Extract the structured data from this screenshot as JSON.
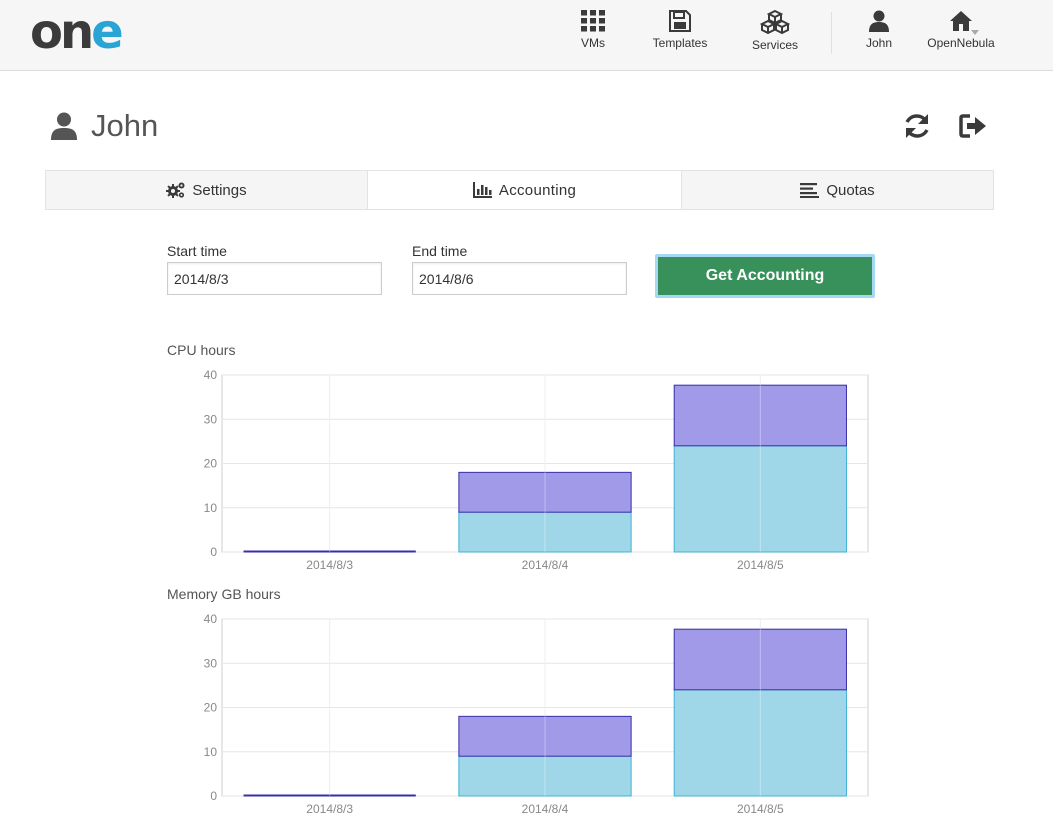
{
  "brand": {
    "logo_text": "one"
  },
  "nav": {
    "items": [
      {
        "label": "VMs",
        "icon": "grid-icon"
      },
      {
        "label": "Templates",
        "icon": "floppy-icon"
      },
      {
        "label": "Services",
        "icon": "cubes-icon"
      },
      {
        "label": "John",
        "icon": "user-icon"
      },
      {
        "label": "OpenNebula",
        "icon": "home-icon"
      }
    ]
  },
  "header": {
    "title": "John",
    "refresh_icon": "refresh-icon",
    "logout_icon": "sign-out-icon"
  },
  "tabs": [
    {
      "label": "Settings",
      "icon": "cogs-icon",
      "active": false
    },
    {
      "label": "Accounting",
      "icon": "bar-chart-icon",
      "active": true
    },
    {
      "label": "Quotas",
      "icon": "list-icon",
      "active": false
    }
  ],
  "form": {
    "start_label": "Start time",
    "start_value": "2014/8/3",
    "end_label": "End time",
    "end_value": "2014/8/6",
    "button_label": "Get Accounting"
  },
  "colors": {
    "accent_green": "#38905a",
    "brand_blue": "#28a5d5",
    "series_light": "#9fd7e8",
    "series_dark": "#a09ae8"
  },
  "chart_data": [
    {
      "type": "bar",
      "title": "CPU hours",
      "categories": [
        "2014/8/3",
        "2014/8/4",
        "2014/8/5"
      ],
      "series": [
        {
          "values": [
            0,
            9,
            24
          ],
          "color": "#9fd7e8",
          "stroke": "#3fb2d6"
        },
        {
          "values": [
            0,
            9,
            13.7
          ],
          "color": "#a09ae8",
          "stroke": "#3a2ea8"
        }
      ],
      "ylim": [
        0,
        40
      ],
      "yticks": [
        0,
        10,
        20,
        30,
        40
      ],
      "stacked": true,
      "grid": true
    },
    {
      "type": "bar",
      "title": "Memory GB hours",
      "categories": [
        "2014/8/3",
        "2014/8/4",
        "2014/8/5"
      ],
      "series": [
        {
          "values": [
            0,
            9,
            24
          ],
          "color": "#9fd7e8",
          "stroke": "#3fb2d6"
        },
        {
          "values": [
            0,
            9,
            13.7
          ],
          "color": "#a09ae8",
          "stroke": "#3a2ea8"
        }
      ],
      "ylim": [
        0,
        40
      ],
      "yticks": [
        0,
        10,
        20,
        30,
        40
      ],
      "stacked": true,
      "grid": true
    }
  ]
}
